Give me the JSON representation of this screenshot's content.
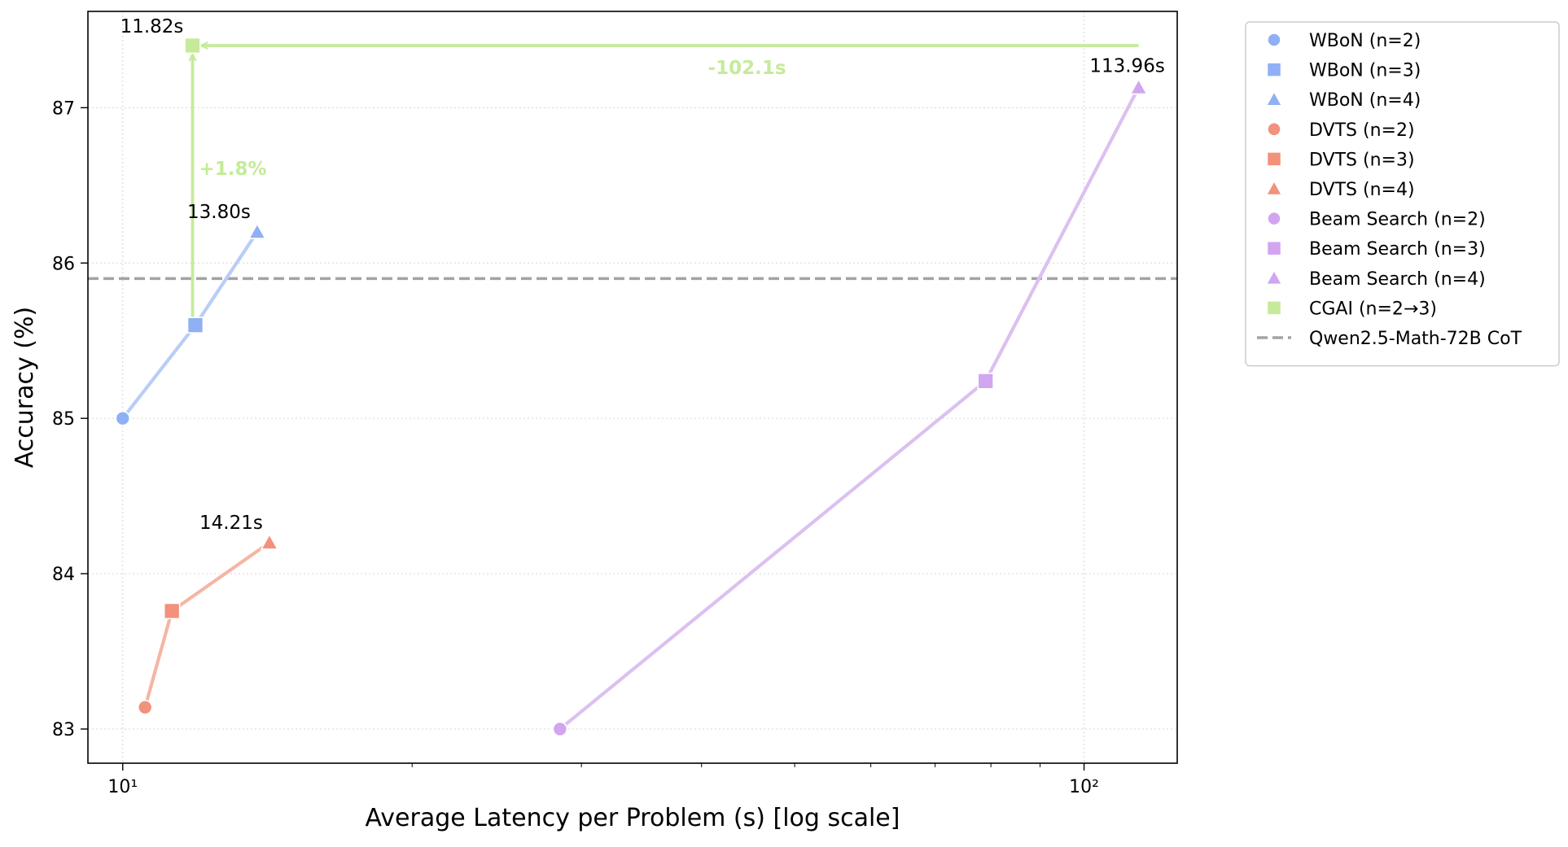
{
  "chart_data": {
    "type": "scatter",
    "xlabel": "Average Latency per Problem (s) [log scale]",
    "ylabel": "Accuracy (%)",
    "xscale": "log",
    "xlim": [
      9.2,
      125
    ],
    "ylim": [
      82.78,
      87.62
    ],
    "x_ticks": [
      {
        "value": 10,
        "label": "10¹"
      },
      {
        "value": 100,
        "label": "10²"
      }
    ],
    "y_ticks": [
      83,
      84,
      85,
      86,
      87
    ],
    "grid": true,
    "legend_position": "outside-right",
    "series": [
      {
        "name": "WBoN (n=2)",
        "group": "WBoN",
        "marker": "circle",
        "color": "#8fb0f5",
        "x": 10.0,
        "y": 85.0
      },
      {
        "name": "WBoN (n=3)",
        "group": "WBoN",
        "marker": "square",
        "color": "#8fb0f5",
        "x": 11.9,
        "y": 85.6
      },
      {
        "name": "WBoN (n=4)",
        "group": "WBoN",
        "marker": "triangle",
        "color": "#8fb0f5",
        "x": 13.8,
        "y": 86.2
      },
      {
        "name": "DVTS (n=2)",
        "group": "DVTS",
        "marker": "circle",
        "color": "#f2917c",
        "x": 10.55,
        "y": 83.14
      },
      {
        "name": "DVTS (n=3)",
        "group": "DVTS",
        "marker": "square",
        "color": "#f2917c",
        "x": 11.25,
        "y": 83.76
      },
      {
        "name": "DVTS (n=4)",
        "group": "DVTS",
        "marker": "triangle",
        "color": "#f2917c",
        "x": 14.21,
        "y": 84.2
      },
      {
        "name": "Beam Search (n=2)",
        "group": "Beam Search",
        "marker": "circle",
        "color": "#d2a5f0",
        "x": 28.5,
        "y": 83.0
      },
      {
        "name": "Beam Search (n=3)",
        "group": "Beam Search",
        "marker": "square",
        "color": "#d2a5f0",
        "x": 79.0,
        "y": 85.24
      },
      {
        "name": "Beam Search (n=4)",
        "group": "Beam Search",
        "marker": "triangle",
        "color": "#d2a5f0",
        "x": 113.96,
        "y": 87.13
      },
      {
        "name": "CGAI (n=2→3)",
        "group": "CGAI",
        "marker": "square",
        "color": "#c5eb9a",
        "x": 11.82,
        "y": 87.4
      }
    ],
    "groups": [
      {
        "name": "WBoN",
        "color": "#b9cdf6"
      },
      {
        "name": "DVTS",
        "color": "#f5b5a4"
      },
      {
        "name": "Beam Search",
        "color": "#dcc0f0"
      }
    ],
    "reference_line": {
      "name": "Qwen2.5-Math-72B CoT",
      "y": 85.9,
      "color": "#a3a3a3"
    },
    "annotations": [
      {
        "text": "11.82s",
        "x": 11.82,
        "y": 87.4
      },
      {
        "text": "13.80s",
        "x": 13.8,
        "y": 86.2
      },
      {
        "text": "14.21s",
        "x": 14.21,
        "y": 84.2
      },
      {
        "text": "113.96s",
        "x": 113.96,
        "y": 87.13
      }
    ],
    "improvement_arrows": [
      {
        "label": "+1.8%",
        "from": {
          "x": 11.82,
          "y": 85.6
        },
        "to": {
          "x": 11.82,
          "y": 87.4
        },
        "color": "#c5eb9a"
      },
      {
        "label": "-102.1s",
        "from": {
          "x": 113.96,
          "y": 87.4
        },
        "to": {
          "x": 11.82,
          "y": 87.4
        },
        "color": "#c5eb9a"
      }
    ]
  }
}
